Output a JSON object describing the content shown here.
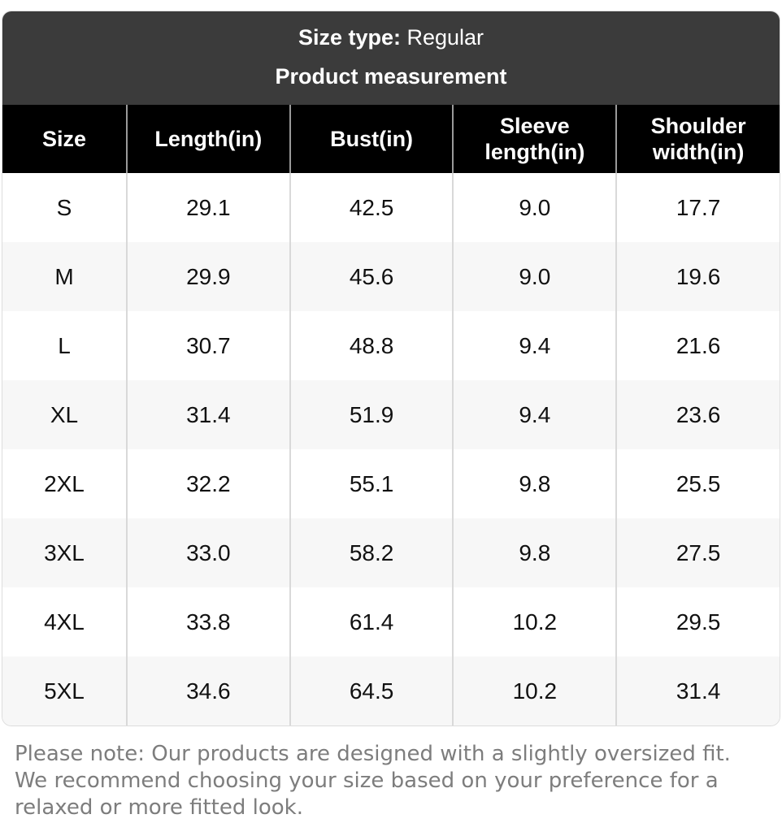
{
  "header": {
    "size_type_label": "Size type:",
    "size_type_value": "Regular",
    "title": "Product measurement"
  },
  "table": {
    "columns": [
      "Size",
      "Length(in)",
      "Bust(in)",
      "Sleeve length(in)",
      "Shoulder width(in)"
    ],
    "rows": [
      [
        "S",
        "29.1",
        "42.5",
        "9.0",
        "17.7"
      ],
      [
        "M",
        "29.9",
        "45.6",
        "9.0",
        "19.6"
      ],
      [
        "L",
        "30.7",
        "48.8",
        "9.4",
        "21.6"
      ],
      [
        "XL",
        "31.4",
        "51.9",
        "9.4",
        "23.6"
      ],
      [
        "2XL",
        "32.2",
        "55.1",
        "9.8",
        "25.5"
      ],
      [
        "3XL",
        "33.0",
        "58.2",
        "9.8",
        "27.5"
      ],
      [
        "4XL",
        "33.8",
        "61.4",
        "10.2",
        "29.5"
      ],
      [
        "5XL",
        "34.6",
        "64.5",
        "10.2",
        "31.4"
      ]
    ]
  },
  "note": "Please note: Our products are designed with a slightly oversized fit. We recommend choosing your size based on your preference for a relaxed or more fitted look.",
  "colors": {
    "topbar_background": "#3b3b3b",
    "header_background": "#000000",
    "row_background": "#ffffff",
    "row_alt_background": "#f7f7f7",
    "header_divider": "#9a9a9a",
    "cell_divider": "#d9d9d9",
    "note_text": "#7d7d7d"
  },
  "chart_data": {
    "type": "table",
    "title": "Product measurement",
    "subtitle": "Size type: Regular",
    "columns": [
      "Size",
      "Length(in)",
      "Bust(in)",
      "Sleeve length(in)",
      "Shoulder width(in)"
    ],
    "rows": [
      [
        "S",
        29.1,
        42.5,
        9.0,
        17.7
      ],
      [
        "M",
        29.9,
        45.6,
        9.0,
        19.6
      ],
      [
        "L",
        30.7,
        48.8,
        9.4,
        21.6
      ],
      [
        "XL",
        31.4,
        51.9,
        9.4,
        23.6
      ],
      [
        "2XL",
        32.2,
        55.1,
        9.8,
        25.5
      ],
      [
        "3XL",
        33.0,
        58.2,
        9.8,
        27.5
      ],
      [
        "4XL",
        33.8,
        61.4,
        10.2,
        29.5
      ],
      [
        "5XL",
        34.6,
        64.5,
        10.2,
        31.4
      ]
    ],
    "note": "Please note: Our products are designed with a slightly oversized fit. We recommend choosing your size based on your preference for a relaxed or more fitted look."
  }
}
